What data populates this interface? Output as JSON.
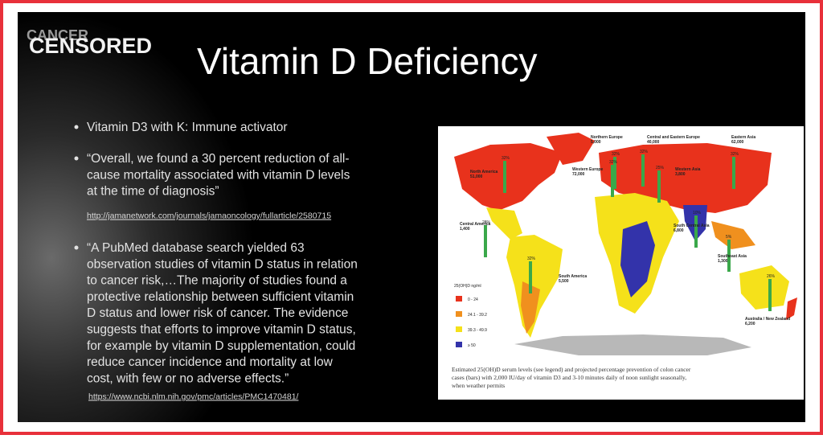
{
  "logo": {
    "line1": "CANCER",
    "line2": "CENSORED"
  },
  "title": "Vitamin D Deficiency",
  "bullets": [
    {
      "lines": [
        "Vitamin D3 with K:  Immune activator"
      ]
    },
    {
      "lines": [
        "“Overall, we found a 30 percent reduction of all-",
        "cause mortality associated with vitamin D levels",
        "at the time of diagnosis”"
      ],
      "link": "http://jamanetwork.com/journals/jamaoncology/fullarticle/2580715"
    },
    {
      "lines": [
        "“A PubMed database search yielded 63",
        "observation studies of vitamin D status in relation",
        "to cancer risk,…The majority of studies found a",
        "protective relationship between sufficient vitamin",
        "D status and lower risk of cancer.  The evidence",
        "suggests that efforts to improve vitamin D status,",
        "for example by vitamin D supplementation, could",
        "reduce cancer incidence and mortality at low",
        "cost, with few or no adverse effects.”"
      ],
      "link": "https://www.ncbi.nlm.nih.gov/pmc/articles/PMC1470481/"
    }
  ],
  "map": {
    "regions": [
      {
        "name": "North America",
        "cases": "51,000",
        "percent": "32%"
      },
      {
        "name": "Northern Europe",
        "cases": "5,000",
        "percent": "32%"
      },
      {
        "name": "Western Europe",
        "cases": "72,000",
        "percent": "32%"
      },
      {
        "name": "Central and Eastern Europe",
        "cases": "40,000",
        "percent": "32%"
      },
      {
        "name": "Western Asia",
        "cases": "3,800",
        "percent": "25%"
      },
      {
        "name": "Eastern Asia",
        "cases": "62,000",
        "percent": "32%"
      },
      {
        "name": "Central America",
        "cases": "1,400",
        "percent": "28%"
      },
      {
        "name": "South America",
        "cases": "5,500",
        "percent": "32%"
      },
      {
        "name": "South Central Asia",
        "cases": "6,800",
        "percent": "10%"
      },
      {
        "name": "Southeast Asia",
        "cases": "1,300",
        "percent": "5%"
      },
      {
        "name": "Australia / New Zealand",
        "cases": "6,200",
        "percent": "26%"
      }
    ],
    "legend": {
      "title": "25(OH)D ng/ml",
      "items": [
        "0 - 24",
        "24.1 - 39.2",
        "39.3 - 49.9",
        "≥ 50"
      ]
    },
    "caption": [
      "Estimated 25(OH)D serum levels (see legend) and projected percentage prevention of colon cancer",
      "cases (bars) with 2,000 IU/day of vitamin D3 and 3-10 minutes daily of noon sunlight seasonally,",
      "when weather permits"
    ]
  }
}
